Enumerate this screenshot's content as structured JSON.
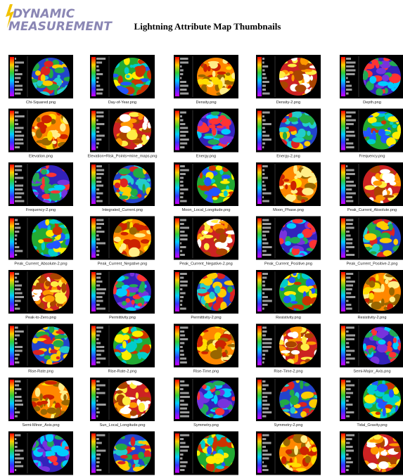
{
  "header": {
    "logo": [
      "DYNAMIC",
      "MEASUREMENT"
    ],
    "title": "Lightning Attribute Map Thumbnails"
  },
  "thumbnails": [
    "Chi-Squared.png",
    "Day-of-Year.png",
    "Density.png",
    "Density-2.png",
    "Depth.png",
    "Elevation.png",
    "Elevation+Risk_Points+mine_maps.png",
    "Energy.png",
    "Energy-2.png",
    "Frequency.png",
    "Frequency-2.png",
    "Integrated_Current.png",
    "Moon_Local_Longitude.png",
    "Moon_Phase.png",
    "Peak_Current_Absolute.png",
    "Peak_Current_Absolute-2.png",
    "Peak_Current_Negative.png",
    "Peak_Current_Negative-2.png",
    "Peak_Current_Positive.png",
    "Peak_Current_Positive-2.png",
    "Peak-to-Zero.png",
    "Permittivity.png",
    "Permittivity-2.png",
    "Resistivity.png",
    "Resistivity-2.png",
    "Rise-Rate.png",
    "Rise-Rate-2.png",
    "Rise-Time.png",
    "Rise-Time-2.png",
    "Semi-Major_Axis.png",
    "Semi-Minor_Axis.png",
    "Sun_Local_Longitude.png",
    "Symmetry.png",
    "Symmetry-2.png",
    "Tidal_Gravity.png"
  ]
}
